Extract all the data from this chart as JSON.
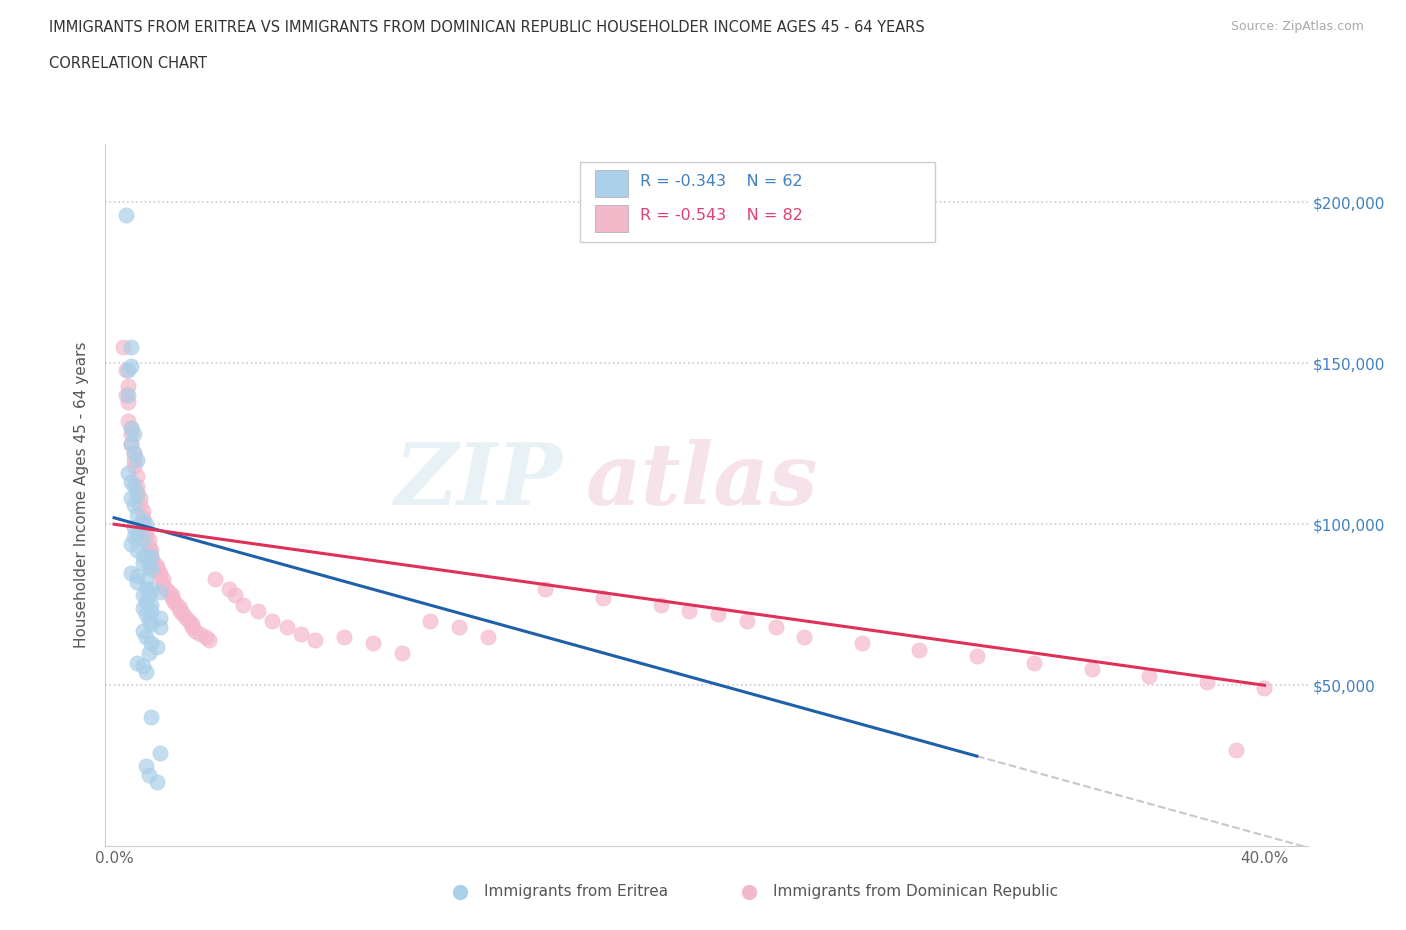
{
  "title_line1": "IMMIGRANTS FROM ERITREA VS IMMIGRANTS FROM DOMINICAN REPUBLIC HOUSEHOLDER INCOME AGES 45 - 64 YEARS",
  "title_line2": "CORRELATION CHART",
  "source_text": "Source: ZipAtlas.com",
  "ylabel": "Householder Income Ages 45 - 64 years",
  "xlim_min": -0.003,
  "xlim_max": 0.415,
  "ylim_min": 0,
  "ylim_max": 218000,
  "color_eritrea": "#aacfe8",
  "color_dominican": "#f4b8cb",
  "line_color_eritrea": "#2060a8",
  "line_color_dominican": "#e0305a",
  "line_color_dashed": "#c8c8c8",
  "text_color_blue": "#4080c0",
  "text_color_pink": "#e04070",
  "right_axis_color": "#4080c0",
  "watermark_color": "#d8e8f0",
  "watermark_color2": "#f0d0dc",
  "watermark": "ZIPatlas",
  "legend_r_eritrea": "R = -0.343",
  "legend_n_eritrea": "N = 62",
  "legend_r_dominican": "R = -0.543",
  "legend_n_dominican": "N = 82",
  "legend_label_eritrea": "Immigrants from Eritrea",
  "legend_label_dominican": "Immigrants from Dominican Republic",
  "eritrea_x": [
    0.004,
    0.006,
    0.006,
    0.005,
    0.005,
    0.006,
    0.007,
    0.006,
    0.007,
    0.008,
    0.005,
    0.006,
    0.007,
    0.008,
    0.006,
    0.007,
    0.008,
    0.01,
    0.011,
    0.007,
    0.008,
    0.007,
    0.01,
    0.006,
    0.008,
    0.01,
    0.011,
    0.013,
    0.01,
    0.012,
    0.013,
    0.006,
    0.008,
    0.011,
    0.008,
    0.011,
    0.013,
    0.016,
    0.01,
    0.012,
    0.011,
    0.013,
    0.01,
    0.013,
    0.011,
    0.016,
    0.012,
    0.013,
    0.016,
    0.01,
    0.011,
    0.013,
    0.015,
    0.012,
    0.008,
    0.01,
    0.011,
    0.013,
    0.016,
    0.011,
    0.012,
    0.015
  ],
  "eritrea_y": [
    196000,
    155000,
    149000,
    148000,
    140000,
    130000,
    128000,
    125000,
    122000,
    120000,
    116000,
    113000,
    112000,
    109000,
    108000,
    106000,
    103000,
    101000,
    100000,
    99000,
    97000,
    96000,
    95000,
    94000,
    92000,
    90000,
    90000,
    90000,
    88000,
    87000,
    86000,
    85000,
    84000,
    83000,
    82000,
    80000,
    80000,
    79000,
    78000,
    78000,
    76000,
    75000,
    74000,
    73000,
    72000,
    71000,
    70000,
    69000,
    68000,
    67000,
    65000,
    63000,
    62000,
    60000,
    57000,
    56000,
    54000,
    40000,
    29000,
    25000,
    22000,
    20000
  ],
  "dominican_x": [
    0.003,
    0.004,
    0.004,
    0.005,
    0.005,
    0.005,
    0.006,
    0.006,
    0.006,
    0.007,
    0.007,
    0.007,
    0.008,
    0.008,
    0.008,
    0.009,
    0.009,
    0.01,
    0.01,
    0.01,
    0.011,
    0.011,
    0.012,
    0.012,
    0.013,
    0.013,
    0.014,
    0.015,
    0.015,
    0.016,
    0.016,
    0.017,
    0.017,
    0.018,
    0.019,
    0.02,
    0.02,
    0.021,
    0.022,
    0.023,
    0.023,
    0.024,
    0.025,
    0.026,
    0.027,
    0.027,
    0.028,
    0.03,
    0.032,
    0.033,
    0.035,
    0.04,
    0.042,
    0.045,
    0.05,
    0.055,
    0.06,
    0.065,
    0.07,
    0.08,
    0.09,
    0.1,
    0.11,
    0.12,
    0.13,
    0.15,
    0.17,
    0.19,
    0.2,
    0.21,
    0.22,
    0.23,
    0.24,
    0.26,
    0.28,
    0.3,
    0.32,
    0.34,
    0.36,
    0.38,
    0.39,
    0.4
  ],
  "dominican_y": [
    155000,
    148000,
    140000,
    143000,
    138000,
    132000,
    130000,
    128000,
    125000,
    122000,
    120000,
    118000,
    115000,
    112000,
    110000,
    108000,
    106000,
    104000,
    102000,
    100000,
    98000,
    96000,
    95000,
    93000,
    92000,
    90000,
    88000,
    87000,
    86000,
    85000,
    84000,
    83000,
    81000,
    80000,
    79000,
    78000,
    77000,
    76000,
    75000,
    74000,
    73000,
    72000,
    71000,
    70000,
    69000,
    68000,
    67000,
    66000,
    65000,
    64000,
    83000,
    80000,
    78000,
    75000,
    73000,
    70000,
    68000,
    66000,
    64000,
    65000,
    63000,
    60000,
    70000,
    68000,
    65000,
    80000,
    77000,
    75000,
    73000,
    72000,
    70000,
    68000,
    65000,
    63000,
    61000,
    59000,
    57000,
    55000,
    53000,
    51000,
    30000,
    49000
  ]
}
